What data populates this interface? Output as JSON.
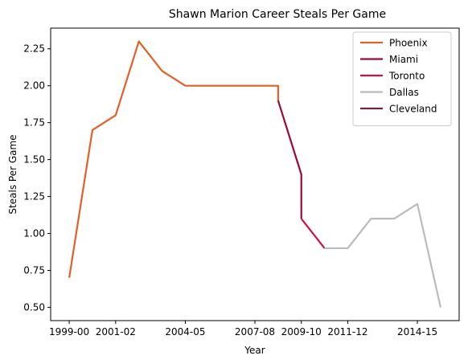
{
  "chart_data": {
    "type": "line",
    "title": "Shawn Marion Career Steals Per Game",
    "xlabel": "Year",
    "ylabel": "Steals Per Game",
    "x_tick_labels": [
      "1999-00",
      "2001-02",
      "2004-05",
      "2007-08",
      "2009-10",
      "2011-12",
      "2014-15"
    ],
    "y_ticks": [
      0.5,
      0.75,
      1.0,
      1.25,
      1.5,
      1.75,
      2.0,
      2.25
    ],
    "y_tick_labels": [
      "0.50",
      "0.75",
      "1.00",
      "1.25",
      "1.50",
      "1.75",
      "2.00",
      "2.25"
    ],
    "ylim": [
      0.41,
      2.39
    ],
    "grid": false,
    "legend_position": "top-right",
    "series": [
      {
        "name": "Phoenix",
        "color": "#e06028",
        "points": [
          {
            "x": "1999-00",
            "y": 0.7
          },
          {
            "x": "2000-01",
            "y": 1.7
          },
          {
            "x": "2001-02",
            "y": 1.8
          },
          {
            "x": "2002-03",
            "y": 2.3
          },
          {
            "x": "2003-04",
            "y": 2.1
          },
          {
            "x": "2004-05",
            "y": 2.0
          },
          {
            "x": "2005-06",
            "y": 2.0
          },
          {
            "x": "2006-07",
            "y": 2.0
          },
          {
            "x": "2007-08",
            "y": 2.0
          },
          {
            "x": "2008-09",
            "y": 2.0
          },
          {
            "x": "2008-09",
            "y": 1.9
          }
        ]
      },
      {
        "name": "Miami",
        "color": "#990a38",
        "points": [
          {
            "x": "2008-09",
            "y": 1.9
          },
          {
            "x": "2009-10",
            "y": 1.4
          },
          {
            "x": "2009-10",
            "y": 1.1
          }
        ]
      },
      {
        "name": "Toronto",
        "color": "#ce1141",
        "points": [
          {
            "x": "2009-10",
            "y": 1.1
          },
          {
            "x": "2010-11",
            "y": 0.9
          }
        ]
      },
      {
        "name": "Dallas",
        "color": "#bbbbbb",
        "points": [
          {
            "x": "2010-11",
            "y": 0.9
          },
          {
            "x": "2011-12",
            "y": 0.9
          },
          {
            "x": "2012-13",
            "y": 1.1
          },
          {
            "x": "2013-14",
            "y": 1.1
          },
          {
            "x": "2014-15",
            "y": 1.2
          },
          {
            "x": "2015-16",
            "y": 0.5
          }
        ]
      },
      {
        "name": "Cleveland",
        "color": "#6f263d",
        "points": []
      }
    ]
  }
}
